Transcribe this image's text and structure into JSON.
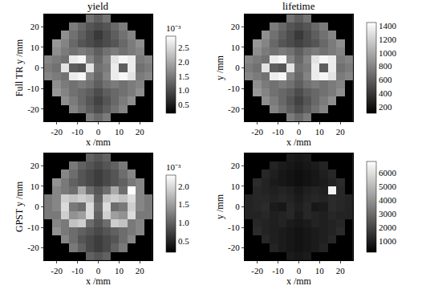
{
  "chart_data": [
    {
      "type": "heatmap",
      "title": "yield",
      "xlabel": "x /mm",
      "ylabel": "Full TR y /mm",
      "x": [
        -24,
        -20,
        -16,
        -12,
        -8,
        -4,
        0,
        4,
        8,
        12,
        16,
        20,
        24
      ],
      "y": [
        -24,
        -20,
        -16,
        -12,
        -8,
        -4,
        0,
        4,
        8,
        12,
        16,
        20,
        24
      ],
      "cells": [
        [
          null,
          null,
          null,
          null,
          null,
          1.5,
          1.3,
          1.5,
          null,
          null,
          null,
          null,
          null
        ],
        [
          null,
          null,
          null,
          1.6,
          1.4,
          1.2,
          1.0,
          1.2,
          1.4,
          1.6,
          null,
          null,
          null
        ],
        [
          null,
          null,
          1.7,
          1.5,
          1.3,
          1.1,
          0.9,
          1.1,
          1.3,
          1.5,
          1.7,
          null,
          null
        ],
        [
          null,
          1.8,
          1.6,
          1.4,
          1.3,
          1.2,
          1.0,
          1.2,
          1.3,
          1.4,
          1.5,
          1.7,
          null
        ],
        [
          null,
          1.7,
          1.5,
          1.4,
          1.5,
          1.4,
          1.2,
          1.4,
          1.5,
          1.4,
          1.5,
          1.6,
          null
        ],
        [
          1.6,
          1.5,
          1.4,
          2.7,
          2.8,
          1.6,
          1.3,
          1.6,
          2.7,
          2.8,
          2.6,
          1.5,
          1.6
        ],
        [
          1.5,
          1.4,
          2.6,
          1.2,
          1.1,
          2.6,
          1.4,
          1.5,
          2.7,
          1.2,
          2.7,
          1.4,
          1.5
        ],
        [
          1.6,
          1.5,
          1.4,
          2.7,
          2.8,
          1.6,
          1.3,
          1.6,
          2.6,
          2.8,
          2.7,
          1.5,
          1.6
        ],
        [
          null,
          1.7,
          1.5,
          1.4,
          1.5,
          1.4,
          1.2,
          1.4,
          1.5,
          1.4,
          1.5,
          1.6,
          null
        ],
        [
          null,
          1.8,
          1.6,
          1.3,
          1.1,
          1.0,
          0.9,
          1.0,
          1.1,
          1.3,
          1.5,
          1.7,
          null
        ],
        [
          null,
          null,
          1.7,
          1.4,
          1.2,
          1.0,
          0.8,
          1.0,
          1.2,
          1.4,
          1.6,
          null,
          null
        ],
        [
          null,
          null,
          null,
          1.5,
          1.3,
          1.1,
          1.0,
          1.1,
          1.3,
          1.5,
          null,
          null,
          null
        ],
        [
          null,
          null,
          null,
          null,
          null,
          1.4,
          1.2,
          1.4,
          null,
          null,
          null,
          null,
          null
        ]
      ],
      "xlim": [
        -26,
        26
      ],
      "ylim": [
        -26,
        26
      ],
      "xticks": [
        -20,
        -10,
        0,
        10,
        20
      ],
      "yticks": [
        -20,
        -10,
        0,
        10,
        20
      ],
      "zlim": [
        0.2,
        2.9
      ],
      "zticks": [
        0.5,
        {
          "value": 1,
          "label": "1.0"
        },
        1.5,
        {
          "value": 2,
          "label": "2.0"
        },
        2.5
      ],
      "colorbar_title": "10⁻³"
    },
    {
      "type": "heatmap",
      "title": "lifetime",
      "xlabel": "x /mm",
      "ylabel": "y /mm",
      "x": [
        -24,
        -20,
        -16,
        -12,
        -8,
        -4,
        0,
        4,
        8,
        12,
        16,
        20,
        24
      ],
      "y": [
        -24,
        -20,
        -16,
        -12,
        -8,
        -4,
        0,
        4,
        8,
        12,
        16,
        20,
        24
      ],
      "cells": [
        [
          null,
          null,
          null,
          null,
          null,
          750,
          650,
          750,
          null,
          null,
          null,
          null,
          null
        ],
        [
          null,
          null,
          null,
          800,
          700,
          600,
          500,
          600,
          700,
          800,
          null,
          null,
          null
        ],
        [
          null,
          null,
          850,
          750,
          650,
          550,
          450,
          550,
          650,
          750,
          850,
          null,
          null
        ],
        [
          null,
          900,
          800,
          700,
          650,
          600,
          500,
          600,
          650,
          700,
          750,
          850,
          null
        ],
        [
          null,
          850,
          750,
          700,
          750,
          700,
          600,
          700,
          750,
          700,
          750,
          800,
          null
        ],
        [
          800,
          750,
          700,
          1350,
          1400,
          800,
          650,
          800,
          1350,
          1400,
          1300,
          750,
          800
        ],
        [
          750,
          700,
          1300,
          600,
          550,
          1300,
          700,
          750,
          1350,
          600,
          1350,
          700,
          750
        ],
        [
          800,
          750,
          700,
          1350,
          1400,
          800,
          650,
          800,
          1300,
          1400,
          1350,
          750,
          800
        ],
        [
          null,
          850,
          750,
          700,
          750,
          700,
          600,
          700,
          750,
          700,
          750,
          800,
          null
        ],
        [
          null,
          900,
          800,
          650,
          550,
          500,
          450,
          500,
          550,
          650,
          750,
          850,
          null
        ],
        [
          null,
          null,
          850,
          700,
          600,
          500,
          400,
          500,
          600,
          700,
          800,
          null,
          null
        ],
        [
          null,
          null,
          null,
          750,
          650,
          550,
          500,
          550,
          650,
          750,
          null,
          null,
          null
        ],
        [
          null,
          null,
          null,
          null,
          null,
          700,
          600,
          700,
          null,
          null,
          null,
          null,
          null
        ]
      ],
      "xlim": [
        -26,
        26
      ],
      "ylim": [
        -26,
        26
      ],
      "xticks": [
        -20,
        -10,
        0,
        10,
        20
      ],
      "yticks": [
        -20,
        -10,
        0,
        10,
        20
      ],
      "zlim": [
        100,
        1450
      ],
      "zticks": [
        200,
        400,
        600,
        800,
        1000,
        1200,
        1400
      ]
    },
    {
      "type": "heatmap",
      "xlabel": "x /mm",
      "ylabel": "GPST y /mm",
      "x": [
        -24,
        -20,
        -16,
        -12,
        -8,
        -4,
        0,
        4,
        8,
        12,
        16,
        20,
        24
      ],
      "y": [
        -24,
        -20,
        -16,
        -12,
        -8,
        -4,
        0,
        4,
        8,
        12,
        16,
        20,
        24
      ],
      "cells": [
        [
          null,
          null,
          null,
          null,
          null,
          1.0,
          0.9,
          1.0,
          null,
          null,
          null,
          null,
          null
        ],
        [
          null,
          null,
          null,
          1.2,
          1.0,
          0.8,
          0.7,
          0.8,
          1.0,
          1.2,
          null,
          null,
          null
        ],
        [
          null,
          null,
          1.3,
          1.1,
          0.9,
          0.8,
          0.7,
          0.8,
          0.9,
          1.1,
          1.3,
          null,
          null
        ],
        [
          null,
          1.4,
          1.2,
          1.1,
          1.0,
          0.9,
          0.8,
          0.9,
          1.0,
          1.1,
          1.2,
          1.3,
          null
        ],
        [
          null,
          1.3,
          1.2,
          1.8,
          1.9,
          1.1,
          0.9,
          1.1,
          1.9,
          1.8,
          1.2,
          1.3,
          null
        ],
        [
          1.2,
          1.2,
          1.9,
          1.4,
          1.5,
          2.0,
          1.0,
          1.9,
          1.5,
          1.4,
          2.0,
          1.2,
          1.2
        ],
        [
          1.2,
          1.3,
          2.0,
          1.2,
          1.1,
          2.0,
          1.1,
          2.0,
          1.1,
          1.2,
          1.9,
          1.3,
          1.2
        ],
        [
          1.2,
          1.3,
          1.9,
          1.8,
          1.9,
          1.8,
          1.0,
          1.8,
          1.9,
          1.8,
          2.0,
          1.3,
          1.2
        ],
        [
          null,
          1.3,
          1.2,
          1.1,
          1.6,
          1.1,
          0.9,
          1.1,
          1.6,
          1.1,
          2.3,
          1.3,
          null
        ],
        [
          null,
          1.4,
          1.2,
          1.0,
          0.9,
          0.8,
          0.7,
          0.8,
          0.9,
          1.0,
          1.2,
          1.3,
          null
        ],
        [
          null,
          null,
          1.3,
          1.1,
          0.9,
          0.8,
          0.7,
          0.8,
          0.9,
          1.1,
          1.3,
          null,
          null
        ],
        [
          null,
          null,
          null,
          1.2,
          1.0,
          0.9,
          0.8,
          0.9,
          1.0,
          1.2,
          null,
          null,
          null
        ],
        [
          null,
          null,
          null,
          null,
          null,
          1.0,
          0.9,
          1.0,
          null,
          null,
          null,
          null,
          null
        ]
      ],
      "xlim": [
        -26,
        26
      ],
      "ylim": [
        -26,
        26
      ],
      "xticks": [
        -20,
        -10,
        0,
        10,
        20
      ],
      "yticks": [
        -20,
        -10,
        0,
        10,
        20
      ],
      "zlim": [
        0.2,
        2.3
      ],
      "zticks": [
        0.5,
        {
          "value": 1,
          "label": "1.0"
        },
        1.5,
        {
          "value": 2,
          "label": "2.0"
        }
      ],
      "colorbar_title": "10⁻³"
    },
    {
      "type": "heatmap",
      "xlabel": "x /mm",
      "ylabel": "y /mm",
      "x": [
        -24,
        -20,
        -16,
        -12,
        -8,
        -4,
        0,
        4,
        8,
        12,
        16,
        20,
        24
      ],
      "y": [
        -24,
        -20,
        -16,
        -12,
        -8,
        -4,
        0,
        4,
        8,
        12,
        16,
        20,
        24
      ],
      "cells": [
        [
          null,
          null,
          null,
          null,
          null,
          900,
          800,
          900,
          null,
          null,
          null,
          null,
          null
        ],
        [
          null,
          null,
          null,
          1100,
          900,
          800,
          700,
          800,
          900,
          1100,
          null,
          null,
          null
        ],
        [
          null,
          null,
          1200,
          1000,
          900,
          800,
          700,
          800,
          900,
          1000,
          1200,
          null,
          null
        ],
        [
          null,
          1300,
          1100,
          1000,
          900,
          800,
          700,
          800,
          900,
          1000,
          1100,
          1300,
          null
        ],
        [
          null,
          1200,
          1100,
          1000,
          1100,
          900,
          800,
          900,
          1100,
          1000,
          1100,
          1200,
          null
        ],
        [
          1100,
          1100,
          1200,
          1000,
          1100,
          1200,
          900,
          1200,
          1100,
          1000,
          1200,
          1100,
          1100
        ],
        [
          1100,
          1200,
          1300,
          900,
          800,
          1200,
          1000,
          1200,
          800,
          900,
          1300,
          1200,
          1100
        ],
        [
          1100,
          1200,
          1200,
          1100,
          1200,
          1100,
          900,
          1100,
          1200,
          1100,
          1300,
          1200,
          1100
        ],
        [
          null,
          1200,
          1100,
          1000,
          1100,
          1000,
          800,
          1000,
          1100,
          1000,
          6500,
          1200,
          null
        ],
        [
          null,
          1300,
          1100,
          900,
          800,
          700,
          600,
          700,
          800,
          900,
          1100,
          1300,
          null
        ],
        [
          null,
          null,
          1200,
          1000,
          800,
          700,
          600,
          700,
          800,
          1000,
          1200,
          null,
          null
        ],
        [
          null,
          null,
          null,
          1100,
          900,
          800,
          700,
          800,
          900,
          1100,
          null,
          null,
          null
        ],
        [
          null,
          null,
          null,
          null,
          null,
          900,
          800,
          900,
          null,
          null,
          null,
          null,
          null
        ]
      ],
      "xlim": [
        -26,
        26
      ],
      "ylim": [
        -26,
        26
      ],
      "xticks": [
        -20,
        -10,
        0,
        10,
        20
      ],
      "yticks": [
        -20,
        -10,
        0,
        10,
        20
      ],
      "zlim": [
        200,
        6800
      ],
      "zticks": [
        1000,
        2000,
        3000,
        4000,
        5000,
        6000
      ]
    }
  ]
}
